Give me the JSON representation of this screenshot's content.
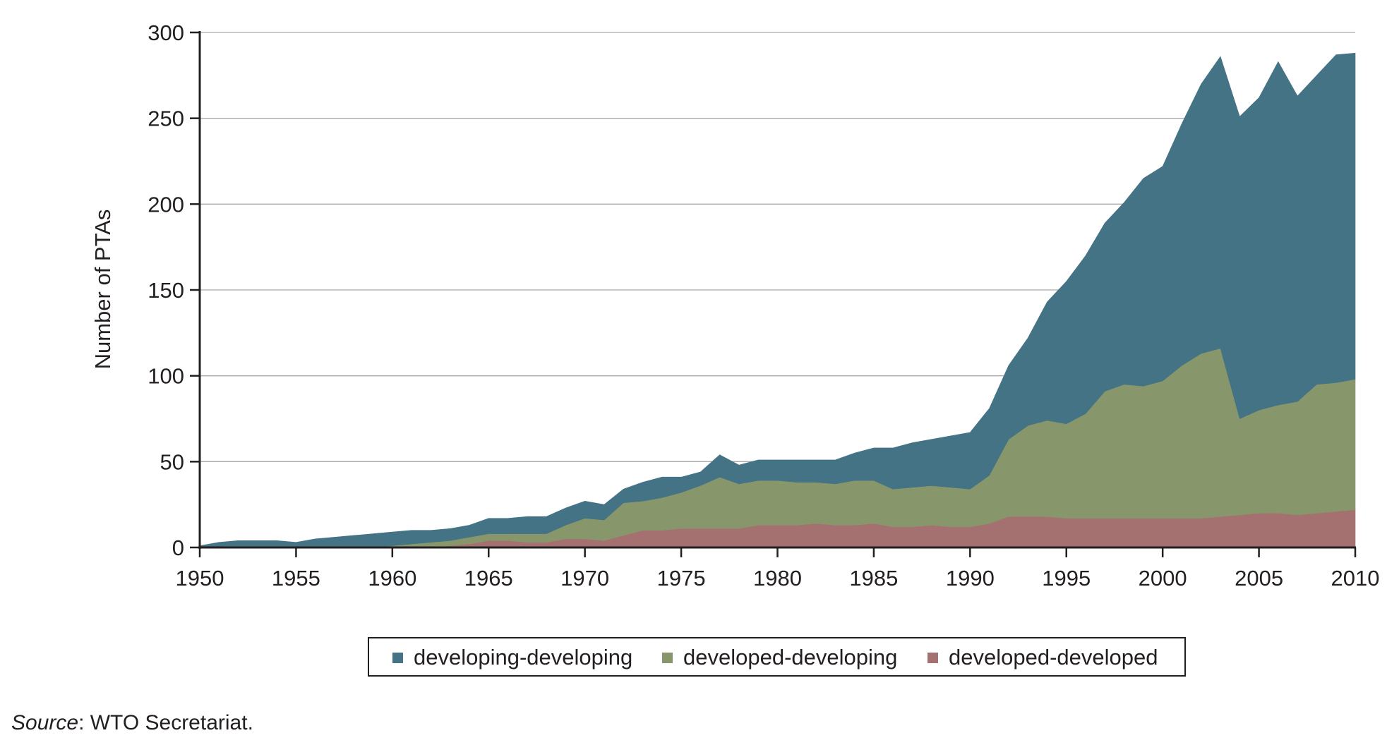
{
  "chart_data": {
    "type": "area",
    "stacked": true,
    "title": "",
    "xlabel": "",
    "ylabel": "Number of PTAs",
    "xlim": [
      1950,
      2010
    ],
    "ylim": [
      0,
      300
    ],
    "xticks": [
      "1950",
      "1955",
      "1960",
      "1965",
      "1970",
      "1975",
      "1980",
      "1985",
      "1990",
      "1995",
      "2000",
      "2005",
      "2010"
    ],
    "yticks": [
      "0",
      "50",
      "100",
      "150",
      "200",
      "250",
      "300"
    ],
    "grid": true,
    "legend_position": "bottom-center",
    "x": [
      1950,
      1951,
      1952,
      1953,
      1954,
      1955,
      1956,
      1957,
      1958,
      1959,
      1960,
      1961,
      1962,
      1963,
      1964,
      1965,
      1966,
      1967,
      1968,
      1969,
      1970,
      1971,
      1972,
      1973,
      1974,
      1975,
      1976,
      1977,
      1978,
      1979,
      1980,
      1981,
      1982,
      1983,
      1984,
      1985,
      1986,
      1987,
      1988,
      1989,
      1990,
      1991,
      1992,
      1993,
      1994,
      1995,
      1996,
      1997,
      1998,
      1999,
      2000,
      2001,
      2002,
      2003,
      2004,
      2005,
      2006,
      2007,
      2008,
      2009,
      2010
    ],
    "series": [
      {
        "name": "developed-developed",
        "color": "#a57170",
        "values": [
          0,
          0,
          0,
          0,
          0,
          0,
          0,
          0,
          0,
          0,
          0,
          0,
          0,
          1,
          2,
          4,
          4,
          3,
          3,
          5,
          5,
          4,
          7,
          10,
          10,
          11,
          11,
          11,
          11,
          13,
          13,
          13,
          14,
          13,
          13,
          14,
          12,
          12,
          13,
          12,
          12,
          14,
          18,
          18,
          18,
          17,
          17,
          17,
          17,
          17,
          17,
          17,
          17,
          18,
          19,
          20,
          20,
          19,
          20,
          21,
          22
        ]
      },
      {
        "name": "developed-developing",
        "color": "#87976b",
        "values": [
          0,
          0,
          0,
          0,
          0,
          0,
          0,
          0,
          0,
          0,
          1,
          2,
          3,
          3,
          4,
          4,
          4,
          5,
          5,
          8,
          12,
          12,
          19,
          17,
          19,
          21,
          25,
          30,
          26,
          26,
          26,
          25,
          24,
          24,
          26,
          25,
          22,
          23,
          23,
          23,
          22,
          28,
          45,
          53,
          56,
          55,
          61,
          74,
          78,
          77,
          80,
          89,
          96,
          98,
          56,
          60,
          63,
          66,
          75,
          75,
          76
        ]
      },
      {
        "name": "developing-developing",
        "color": "#447385",
        "values": [
          1,
          3,
          4,
          4,
          4,
          3,
          5,
          6,
          7,
          8,
          8,
          8,
          7,
          7,
          7,
          9,
          9,
          10,
          10,
          10,
          10,
          9,
          8,
          11,
          12,
          9,
          8,
          13,
          11,
          12,
          12,
          13,
          13,
          14,
          16,
          19,
          24,
          26,
          27,
          30,
          33,
          39,
          43,
          51,
          69,
          83,
          92,
          98,
          106,
          121,
          125,
          141,
          157,
          170,
          176,
          182,
          200,
          178,
          180,
          191,
          190
        ]
      }
    ]
  },
  "source": {
    "prefix": "Source",
    "text": ": WTO Secretariat."
  }
}
